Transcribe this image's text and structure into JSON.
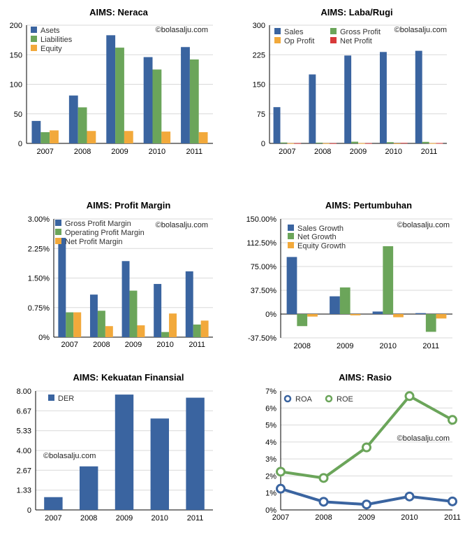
{
  "chart_data": [
    {
      "id": "neraca",
      "type": "bar",
      "title": "AIMS: Neraca",
      "watermark": "©bolasalju.com",
      "categories": [
        "2007",
        "2008",
        "2009",
        "2010",
        "2011"
      ],
      "ylim": [
        0,
        200
      ],
      "yticks": [
        0,
        50,
        100,
        150,
        200
      ],
      "ytick_labels": [
        "0",
        "50",
        "100",
        "150",
        "200"
      ],
      "series": [
        {
          "name": "Asets",
          "color": "#3A64A0",
          "values": [
            38,
            81,
            183,
            146,
            163
          ]
        },
        {
          "name": "Liabilities",
          "color": "#6BA55A",
          "values": [
            19,
            61,
            162,
            125,
            142
          ]
        },
        {
          "name": "Equity",
          "color": "#F2A93B",
          "values": [
            22,
            21,
            21,
            20,
            19
          ]
        }
      ]
    },
    {
      "id": "labarugi",
      "type": "bar",
      "title": "AIMS: Laba/Rugi",
      "watermark": "©bolasalju.com",
      "categories": [
        "2007",
        "2008",
        "2009",
        "2010",
        "2011"
      ],
      "ylim": [
        0,
        300
      ],
      "yticks": [
        0,
        75,
        150,
        225,
        300
      ],
      "ytick_labels": [
        "0",
        "75",
        "150",
        "225",
        "300"
      ],
      "series": [
        {
          "name": "Sales",
          "color": "#3A64A0",
          "values": [
            92,
            175,
            223,
            232,
            235
          ]
        },
        {
          "name": "Gross Profit",
          "color": "#6BA55A",
          "values": [
            2.3,
            1.9,
            4.3,
            3.1,
            3.9
          ]
        },
        {
          "name": "Op Profit",
          "color": "#F2A93B",
          "values": [
            0.6,
            0.5,
            0.7,
            0.2,
            0.7
          ]
        },
        {
          "name": "Net Profit",
          "color": "#D83A3A",
          "values": [
            0.6,
            0.5,
            0.6,
            1.4,
            1.0
          ]
        }
      ]
    },
    {
      "id": "profitmargin",
      "type": "bar",
      "title": "AIMS: Profit Margin",
      "watermark": "©bolasalju.com",
      "categories": [
        "2007",
        "2008",
        "2009",
        "2010",
        "2011"
      ],
      "ylim": [
        0,
        3
      ],
      "yticks": [
        0,
        0.75,
        1.5,
        2.25,
        3
      ],
      "ytick_labels": [
        "0%",
        "0.75%",
        "1.50%",
        "2.25%",
        "3.00%"
      ],
      "series": [
        {
          "name": "Gross Profit Margin",
          "color": "#3A64A0",
          "values": [
            2.52,
            1.08,
            1.93,
            1.35,
            1.67
          ]
        },
        {
          "name": "Operating Profit Margin",
          "color": "#6BA55A",
          "values": [
            0.63,
            0.67,
            1.18,
            0.13,
            0.32
          ]
        },
        {
          "name": "Net Profit Margin",
          "color": "#F2A93B",
          "values": [
            0.63,
            0.28,
            0.3,
            0.6,
            0.42
          ]
        }
      ]
    },
    {
      "id": "pertumbuhan",
      "type": "bar",
      "title": "AIMS: Pertumbuhan",
      "watermark": "©bolasalju.com",
      "categories": [
        "2008",
        "2009",
        "2010",
        "2011"
      ],
      "ylim": [
        -37.5,
        150
      ],
      "yticks": [
        -37.5,
        0,
        37.5,
        75,
        112.5,
        150
      ],
      "ytick_labels": [
        "-37.50%",
        "0%",
        "37.50%",
        "75.00%",
        "112.50%",
        "150.00%"
      ],
      "series": [
        {
          "name": "Sales Growth",
          "color": "#3A64A0",
          "values": [
            90,
            28,
            4,
            1.5
          ]
        },
        {
          "name": "Net Growth",
          "color": "#6BA55A",
          "values": [
            -19,
            42,
            107,
            -28
          ]
        },
        {
          "name": "Equity Growth",
          "color": "#F2A93B",
          "values": [
            -4,
            -2,
            -5,
            -7
          ]
        }
      ]
    },
    {
      "id": "kekuatan",
      "type": "bar",
      "title": "AIMS: Kekuatan Finansial",
      "watermark": "©bolasalju.com",
      "categories": [
        "2007",
        "2008",
        "2009",
        "2010",
        "2011"
      ],
      "ylim": [
        0,
        8
      ],
      "yticks": [
        0,
        1.33,
        2.67,
        4,
        5.33,
        6.67,
        8
      ],
      "ytick_labels": [
        "0",
        "1.33",
        "2.67",
        "4.00",
        "5.33",
        "6.67",
        "8.00"
      ],
      "series": [
        {
          "name": "DER",
          "color": "#3A64A0",
          "values": [
            0.86,
            2.93,
            7.76,
            6.15,
            7.55
          ]
        }
      ]
    },
    {
      "id": "rasio",
      "type": "line",
      "title": "AIMS: Rasio",
      "watermark": "©bolasalju.com",
      "categories": [
        "2007",
        "2008",
        "2009",
        "2010",
        "2011"
      ],
      "ylim": [
        0,
        7
      ],
      "yticks": [
        0,
        1,
        2,
        3,
        4,
        5,
        6,
        7
      ],
      "ytick_labels": [
        "0%",
        "1%",
        "2%",
        "3%",
        "4%",
        "5%",
        "6%",
        "7%"
      ],
      "series": [
        {
          "name": "ROA",
          "color": "#3A64A0",
          "values": [
            1.25,
            0.48,
            0.32,
            0.79,
            0.5
          ]
        },
        {
          "name": "ROE",
          "color": "#6BA55A",
          "values": [
            2.25,
            1.88,
            3.68,
            6.7,
            5.3
          ]
        }
      ]
    }
  ]
}
